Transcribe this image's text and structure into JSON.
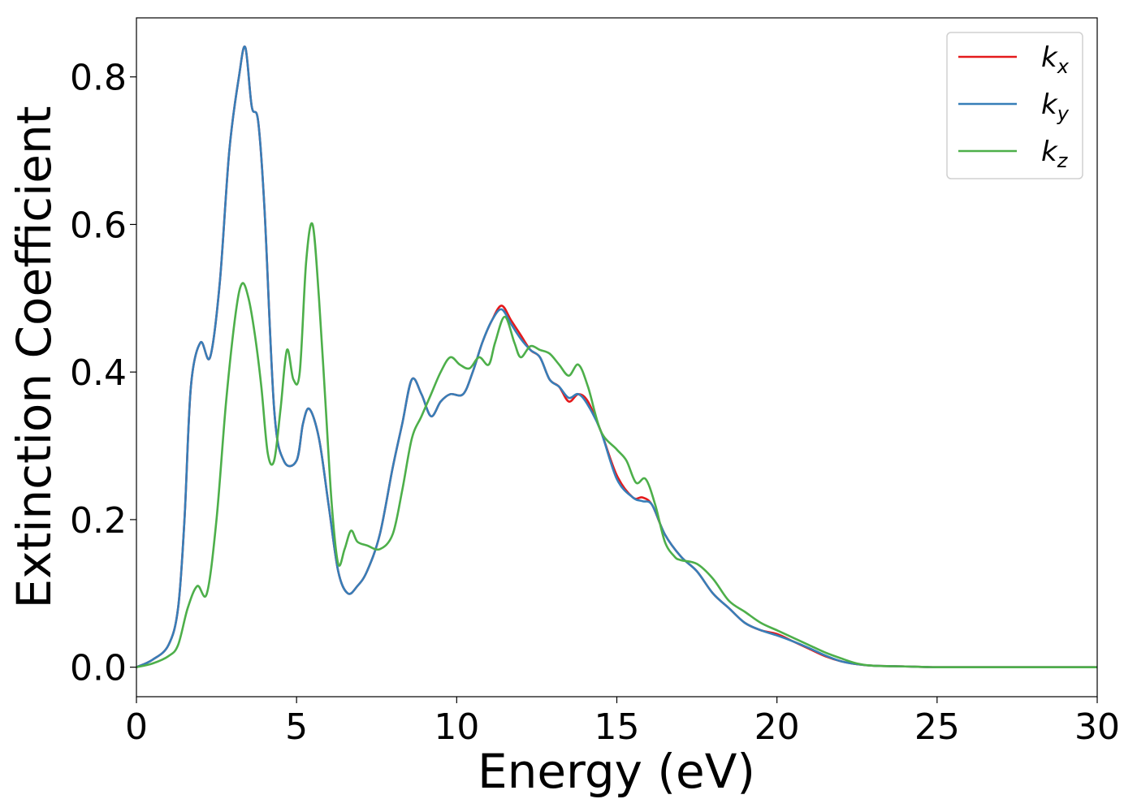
{
  "chart_data": {
    "type": "line",
    "title": "",
    "xlabel": "Energy (eV)",
    "ylabel": "Extinction Coefficient",
    "xlim": [
      0,
      30
    ],
    "ylim": [
      -0.04,
      0.88
    ],
    "xticks": [
      0,
      5,
      10,
      15,
      20,
      25,
      30
    ],
    "xtick_labels": [
      "0",
      "5",
      "10",
      "15",
      "20",
      "25",
      "30"
    ],
    "yticks": [
      0.0,
      0.2,
      0.4,
      0.6,
      0.8
    ],
    "ytick_labels": [
      "0.0",
      "0.2",
      "0.4",
      "0.6",
      "0.8"
    ],
    "grid": false,
    "legend_position": "top-right",
    "series": [
      {
        "name": "k_x",
        "label_base": "k",
        "label_sub": "x",
        "color": "#e41a1c",
        "x": [
          0,
          0.5,
          1.0,
          1.3,
          1.5,
          1.7,
          2.0,
          2.3,
          2.6,
          2.9,
          3.2,
          3.4,
          3.6,
          3.8,
          4.0,
          4.3,
          4.6,
          5.0,
          5.2,
          5.4,
          5.7,
          6.0,
          6.3,
          6.6,
          6.9,
          7.2,
          7.6,
          8.0,
          8.3,
          8.6,
          8.9,
          9.2,
          9.5,
          9.8,
          10.2,
          10.5,
          10.8,
          11.1,
          11.4,
          11.7,
          12.0,
          12.3,
          12.6,
          12.9,
          13.2,
          13.5,
          13.8,
          14.1,
          14.5,
          15.0,
          15.5,
          15.8,
          16.1,
          16.5,
          17.0,
          17.5,
          18.0,
          18.5,
          19.0,
          19.5,
          20.0,
          20.5,
          21.0,
          21.5,
          22.0,
          22.5,
          23.0,
          24.0,
          25.0,
          27.0,
          30.0
        ],
        "y": [
          0.0,
          0.01,
          0.03,
          0.08,
          0.2,
          0.38,
          0.44,
          0.42,
          0.52,
          0.7,
          0.8,
          0.84,
          0.76,
          0.74,
          0.62,
          0.35,
          0.28,
          0.28,
          0.33,
          0.35,
          0.31,
          0.22,
          0.13,
          0.1,
          0.11,
          0.13,
          0.18,
          0.27,
          0.33,
          0.39,
          0.37,
          0.34,
          0.36,
          0.37,
          0.37,
          0.4,
          0.44,
          0.47,
          0.49,
          0.47,
          0.45,
          0.43,
          0.42,
          0.39,
          0.38,
          0.36,
          0.37,
          0.36,
          0.32,
          0.26,
          0.23,
          0.23,
          0.22,
          0.18,
          0.15,
          0.13,
          0.1,
          0.08,
          0.06,
          0.05,
          0.045,
          0.035,
          0.025,
          0.015,
          0.008,
          0.004,
          0.002,
          0.001,
          0.0,
          0.0,
          0.0
        ]
      },
      {
        "name": "k_y",
        "label_base": "k",
        "label_sub": "y",
        "color": "#377eb8",
        "x": [
          0,
          0.5,
          1.0,
          1.3,
          1.5,
          1.7,
          2.0,
          2.3,
          2.6,
          2.9,
          3.2,
          3.4,
          3.6,
          3.8,
          4.0,
          4.3,
          4.6,
          5.0,
          5.2,
          5.4,
          5.7,
          6.0,
          6.3,
          6.6,
          6.9,
          7.2,
          7.6,
          8.0,
          8.3,
          8.6,
          8.9,
          9.2,
          9.5,
          9.8,
          10.2,
          10.5,
          10.8,
          11.1,
          11.4,
          11.7,
          12.0,
          12.3,
          12.6,
          12.9,
          13.2,
          13.5,
          13.8,
          14.1,
          14.5,
          15.0,
          15.5,
          15.8,
          16.1,
          16.5,
          17.0,
          17.5,
          18.0,
          18.5,
          19.0,
          19.5,
          20.0,
          20.5,
          21.0,
          21.5,
          22.0,
          22.5,
          23.0,
          24.0,
          25.0,
          27.0,
          30.0
        ],
        "y": [
          0.0,
          0.01,
          0.03,
          0.08,
          0.2,
          0.38,
          0.44,
          0.42,
          0.52,
          0.7,
          0.8,
          0.84,
          0.76,
          0.74,
          0.62,
          0.35,
          0.28,
          0.28,
          0.33,
          0.35,
          0.31,
          0.22,
          0.13,
          0.1,
          0.11,
          0.13,
          0.18,
          0.27,
          0.33,
          0.39,
          0.37,
          0.34,
          0.36,
          0.37,
          0.37,
          0.4,
          0.44,
          0.47,
          0.485,
          0.465,
          0.445,
          0.43,
          0.42,
          0.39,
          0.38,
          0.365,
          0.37,
          0.355,
          0.32,
          0.255,
          0.23,
          0.225,
          0.22,
          0.18,
          0.15,
          0.13,
          0.1,
          0.08,
          0.06,
          0.05,
          0.043,
          0.035,
          0.026,
          0.016,
          0.008,
          0.004,
          0.002,
          0.001,
          0.0,
          0.0,
          0.0
        ]
      },
      {
        "name": "k_z",
        "label_base": "k",
        "label_sub": "z",
        "color": "#4daf4a",
        "x": [
          0,
          0.5,
          1.0,
          1.3,
          1.6,
          1.9,
          2.2,
          2.5,
          2.8,
          3.1,
          3.3,
          3.5,
          3.7,
          3.9,
          4.1,
          4.3,
          4.5,
          4.7,
          4.9,
          5.1,
          5.3,
          5.5,
          5.7,
          5.9,
          6.1,
          6.3,
          6.5,
          6.7,
          6.9,
          7.2,
          7.6,
          8.0,
          8.3,
          8.6,
          8.9,
          9.2,
          9.5,
          9.8,
          10.1,
          10.4,
          10.7,
          11.0,
          11.2,
          11.5,
          11.8,
          12.0,
          12.3,
          12.6,
          12.9,
          13.2,
          13.5,
          13.8,
          14.1,
          14.5,
          15.0,
          15.3,
          15.6,
          15.9,
          16.2,
          16.5,
          16.8,
          17.0,
          17.5,
          18.0,
          18.5,
          19.0,
          19.5,
          20.0,
          20.5,
          21.0,
          21.5,
          22.0,
          22.5,
          23.0,
          24.0,
          25.0,
          27.0,
          30.0
        ],
        "y": [
          0.0,
          0.005,
          0.015,
          0.03,
          0.08,
          0.11,
          0.1,
          0.2,
          0.36,
          0.48,
          0.52,
          0.5,
          0.45,
          0.38,
          0.29,
          0.28,
          0.35,
          0.43,
          0.39,
          0.4,
          0.55,
          0.6,
          0.5,
          0.36,
          0.22,
          0.14,
          0.16,
          0.185,
          0.17,
          0.165,
          0.16,
          0.18,
          0.24,
          0.31,
          0.34,
          0.37,
          0.4,
          0.42,
          0.41,
          0.405,
          0.42,
          0.41,
          0.44,
          0.475,
          0.44,
          0.42,
          0.435,
          0.43,
          0.425,
          0.41,
          0.395,
          0.41,
          0.38,
          0.32,
          0.295,
          0.28,
          0.25,
          0.255,
          0.22,
          0.17,
          0.15,
          0.145,
          0.14,
          0.12,
          0.09,
          0.075,
          0.06,
          0.05,
          0.04,
          0.03,
          0.02,
          0.012,
          0.005,
          0.002,
          0.001,
          0.0,
          0.0,
          0.0
        ]
      }
    ]
  }
}
